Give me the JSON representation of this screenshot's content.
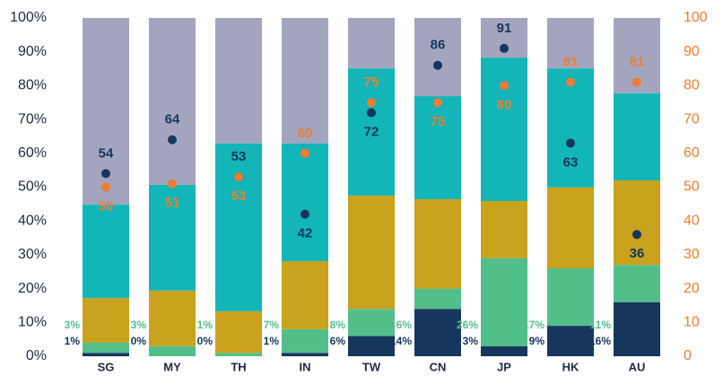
{
  "chart_data": {
    "type": "bar",
    "stacked": true,
    "categories": [
      "SG",
      "MY",
      "TH",
      "IN",
      "TW",
      "CN",
      "JP",
      "HK",
      "AU"
    ],
    "series": [
      {
        "color": "#17365d",
        "values": [
          1,
          0,
          0,
          1,
          6,
          14,
          3,
          9,
          16
        ],
        "value_labels": [
          "1%",
          "0%",
          "0%",
          "1%",
          "6%",
          "14%",
          "3%",
          "9%",
          "16%"
        ]
      },
      {
        "color": "#52bf8a",
        "values": [
          3,
          3,
          1,
          7,
          8,
          6,
          26,
          17,
          11
        ],
        "value_labels": [
          "3%",
          "3%",
          "1%",
          "7%",
          "8%",
          "6%",
          "26%",
          "17%",
          "11%"
        ]
      },
      {
        "color": "#c9a21e",
        "values": [
          13.2,
          16.4,
          12.3,
          20.1,
          33.5,
          26.4,
          16.9,
          23.9,
          25
        ]
      },
      {
        "color": "#12b5b8",
        "values": [
          27.6,
          31.3,
          49.6,
          34.8,
          37.6,
          30.5,
          42.4,
          35.2,
          25.7
        ]
      },
      {
        "color": "#a3a5bf",
        "values": [
          55.2,
          49.3,
          37.1,
          37.1,
          14.9,
          23.1,
          11.7,
          14.9,
          22.3
        ]
      },
      {
        "type": "scatter",
        "axis": "y2",
        "color": "#17365d",
        "values": [
          54,
          64,
          53,
          42,
          72,
          86,
          91,
          63,
          36
        ]
      },
      {
        "type": "scatter",
        "axis": "y2",
        "color": "#ed7d31",
        "values": [
          50,
          51,
          53,
          60,
          75,
          75,
          80,
          81,
          81
        ]
      }
    ],
    "ylim": [
      0,
      100
    ],
    "yticks": [
      {
        "value": 0,
        "label": "0%"
      },
      {
        "value": 10,
        "label": "10%"
      },
      {
        "value": 20,
        "label": "20%"
      },
      {
        "value": 30,
        "label": "30%"
      },
      {
        "value": 40,
        "label": "40%"
      },
      {
        "value": 50,
        "label": "50%"
      },
      {
        "value": 60,
        "label": "60%"
      },
      {
        "value": 70,
        "label": "70%"
      },
      {
        "value": 80,
        "label": "80%"
      },
      {
        "value": 90,
        "label": "90%"
      },
      {
        "value": 100,
        "label": "100%"
      }
    ],
    "y2lim": [
      0,
      100
    ],
    "y2ticks": [
      0,
      10,
      20,
      30,
      40,
      50,
      60,
      70,
      80,
      90,
      100
    ],
    "y2color": "#ed7d31",
    "grid": false
  }
}
